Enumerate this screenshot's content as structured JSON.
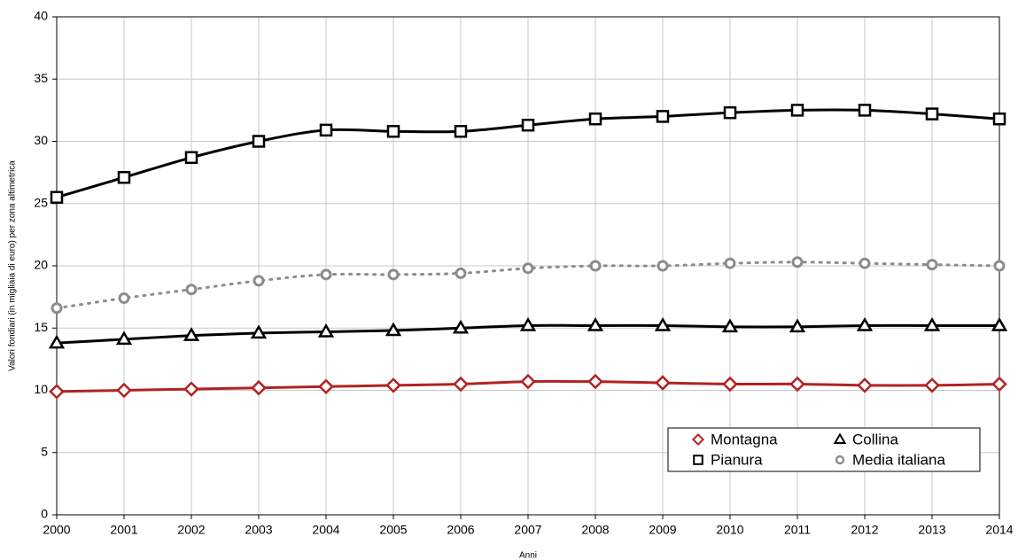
{
  "chart_data": {
    "type": "line",
    "x_label": "Anni",
    "y_label": "Valori fondiari (in migliaia di euro) per zona altimetrica",
    "x": [
      2000,
      2001,
      2002,
      2003,
      2004,
      2005,
      2006,
      2007,
      2008,
      2009,
      2010,
      2011,
      2012,
      2013,
      2014
    ],
    "xlim": [
      2000,
      2014
    ],
    "xticks": [
      2000,
      2001,
      2002,
      2003,
      2004,
      2005,
      2006,
      2007,
      2008,
      2009,
      2010,
      2011,
      2012,
      2013,
      2014
    ],
    "ylim": [
      0,
      40
    ],
    "yticks": [
      0,
      5,
      10,
      15,
      20,
      25,
      30,
      35,
      40
    ],
    "grid": true,
    "legend": "lower right",
    "series": [
      {
        "name": "Montagna",
        "color": "#b22222",
        "marker": "diamond",
        "dash": "solid",
        "values": [
          9.9,
          10.0,
          10.1,
          10.2,
          10.3,
          10.4,
          10.5,
          10.7,
          10.7,
          10.6,
          10.5,
          10.5,
          10.4,
          10.4,
          10.5
        ]
      },
      {
        "name": "Pianura",
        "color": "#000000",
        "marker": "square",
        "dash": "solid",
        "values": [
          25.5,
          27.1,
          28.7,
          30.0,
          30.9,
          30.8,
          30.8,
          31.3,
          31.8,
          32.0,
          32.3,
          32.5,
          32.5,
          32.2,
          31.8
        ]
      },
      {
        "name": "Collina",
        "color": "#000000",
        "marker": "triangle",
        "dash": "solid",
        "values": [
          13.8,
          14.1,
          14.4,
          14.6,
          14.7,
          14.8,
          15.0,
          15.2,
          15.2,
          15.2,
          15.1,
          15.1,
          15.2,
          15.2,
          15.2
        ]
      },
      {
        "name": "Media italiana",
        "color": "#8c8c8c",
        "marker": "circle",
        "dash": "dotted",
        "values": [
          16.6,
          17.4,
          18.1,
          18.8,
          19.3,
          19.3,
          19.4,
          19.8,
          20.0,
          20.0,
          20.2,
          20.3,
          20.2,
          20.1,
          20.0
        ]
      }
    ]
  }
}
